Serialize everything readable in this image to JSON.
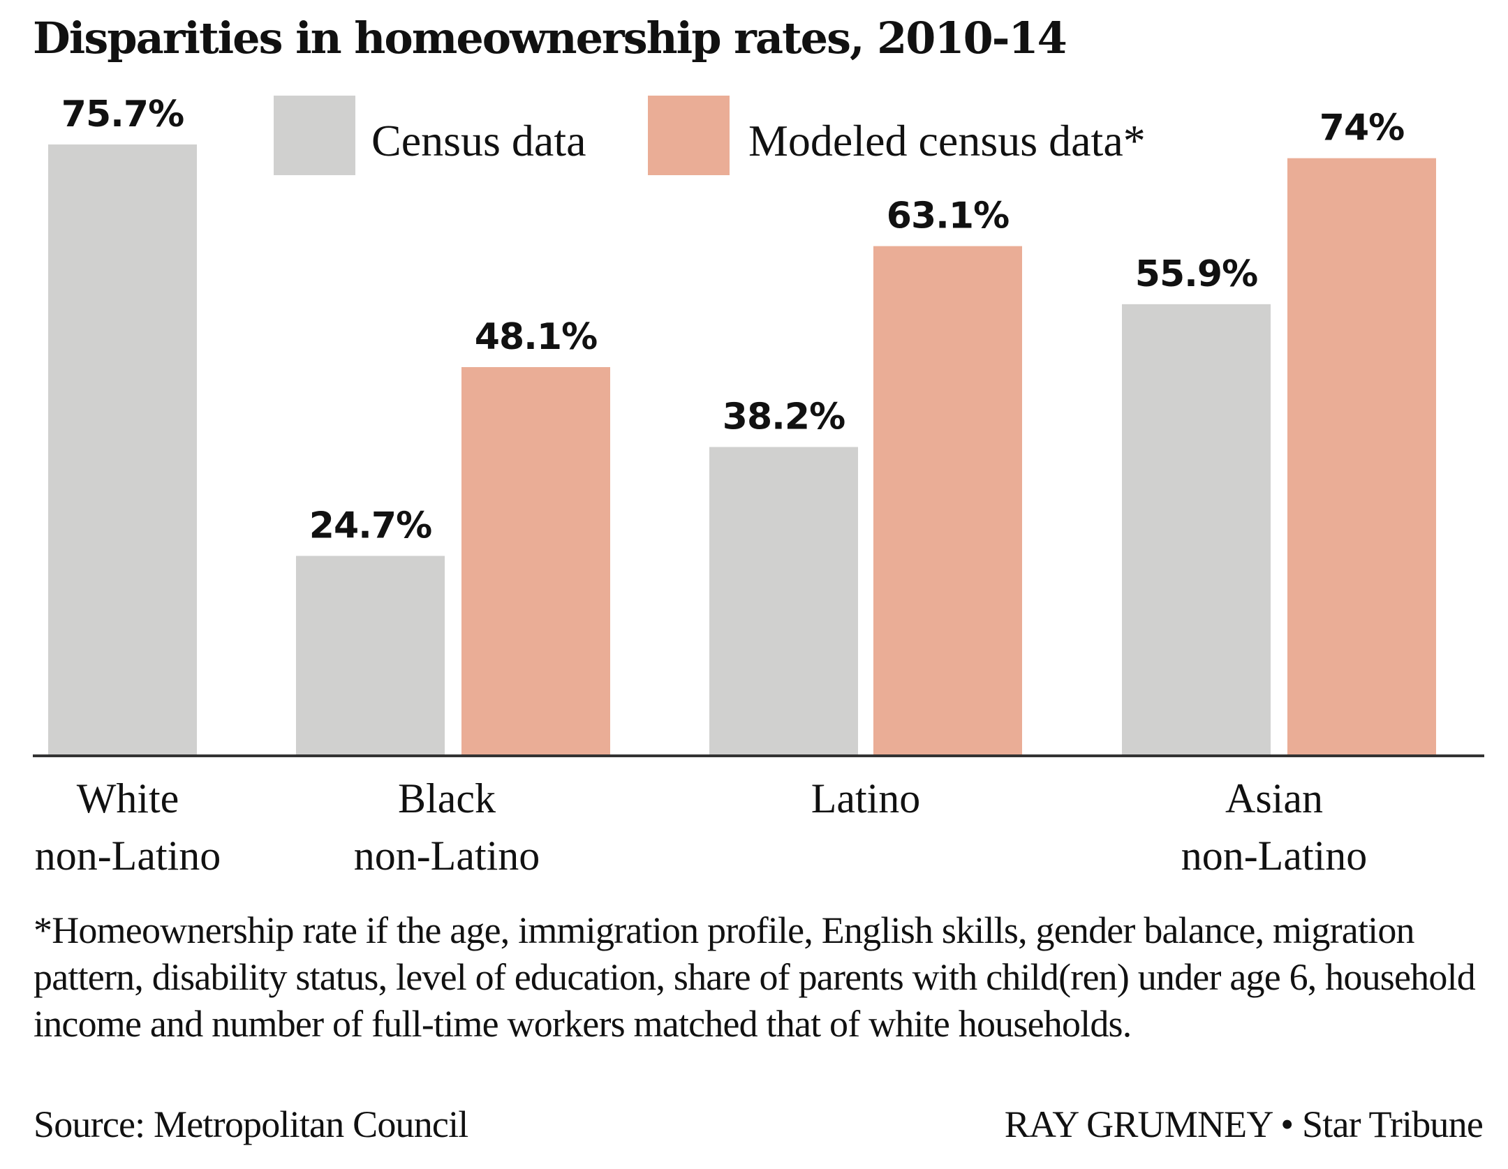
{
  "chart_data": {
    "type": "bar",
    "title": "Disparities in homeownership rates, 2010-14",
    "xlabel": "",
    "ylabel": "",
    "ylim": [
      0,
      75.7
    ],
    "grid": false,
    "legend_position": "top",
    "categories": [
      {
        "line1": "White",
        "line2": "non-Latino"
      },
      {
        "line1": "Black",
        "line2": "non-Latino"
      },
      {
        "line1": "Latino",
        "line2": ""
      },
      {
        "line1": "Asian",
        "line2": "non-Latino"
      }
    ],
    "series": [
      {
        "name": "Census data",
        "color": "#d0d0cf",
        "values": [
          75.7,
          24.7,
          38.2,
          55.9
        ],
        "labels": [
          "75.7%",
          "24.7%",
          "38.2%",
          "55.9%"
        ]
      },
      {
        "name": "Modeled census data*",
        "color": "#eaad96",
        "values": [
          null,
          48.1,
          63.1,
          74
        ],
        "labels": [
          "",
          "48.1%",
          "63.1%",
          "74%"
        ]
      }
    ],
    "footnote": "*Homeownership rate if the age, immigration profile, English skills, gender balance, migration pattern, disability status, level of education, share of parents with child(ren) under age 6, household income and number of full-time workers matched that of white households.",
    "source": "Source: Metropolitan Council",
    "credit": "RAY GRUMNEY • Star Tribune"
  }
}
